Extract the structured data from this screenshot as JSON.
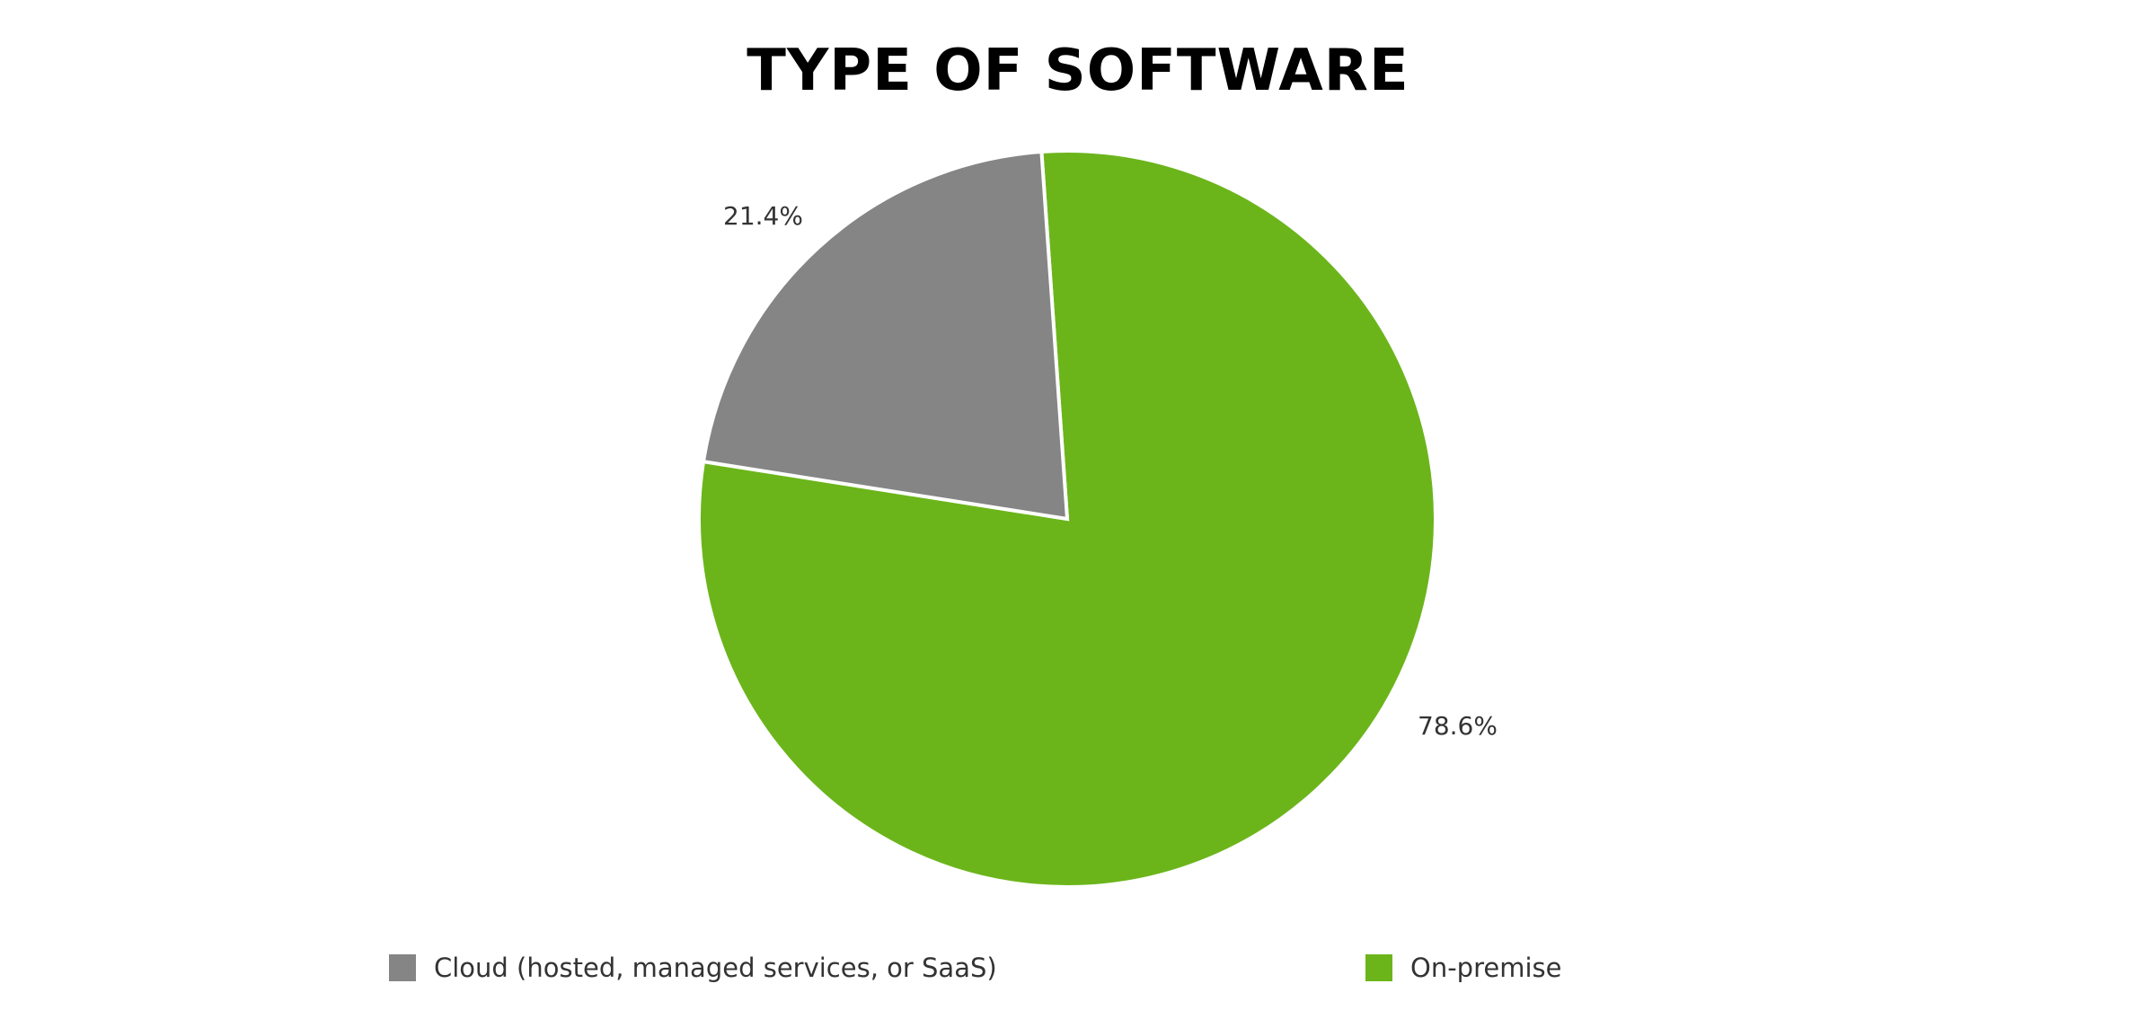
{
  "chart_data": {
    "type": "pie",
    "title": "TYPE OF SOFTWARE",
    "categories": [
      "Cloud (hosted, managed services, or SaaS)",
      "On-premise"
    ],
    "values": [
      21.4,
      78.6
    ],
    "colors": [
      "#858585",
      "#6bb51b"
    ],
    "data_labels": [
      "21.4%",
      "78.6%"
    ],
    "legend_position": "bottom",
    "start_angle_deg": -4,
    "direction": "counterclockwise-for-first-slice"
  },
  "title": "TYPE OF SOFTWARE",
  "labels": {
    "cloud": "21.4%",
    "onprem": "78.6%"
  },
  "legend": [
    {
      "label": "Cloud (hosted, managed services, or SaaS)",
      "color": "#858585"
    },
    {
      "label": "On-premise",
      "color": "#6bb51b"
    }
  ]
}
